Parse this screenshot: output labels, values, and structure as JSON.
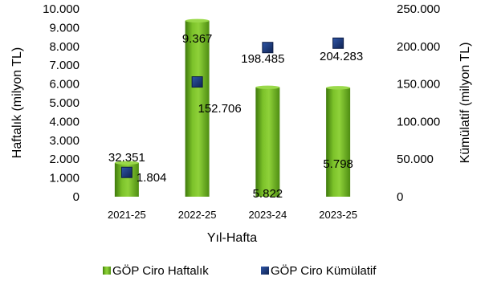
{
  "chart_data": {
    "type": "bar",
    "categories": [
      "2021-25",
      "2022-25",
      "2023-24",
      "2023-25"
    ],
    "series": [
      {
        "name": "GÖP Ciro Haftalık",
        "kind": "bar",
        "axis": "left",
        "values": [
          1804,
          9367,
          5822,
          5798
        ],
        "labels": [
          "1.804",
          "9.367",
          "5.822",
          "5.798"
        ],
        "color": "#6aaa1e"
      },
      {
        "name": "GÖP Ciro Kümülatif",
        "kind": "marker",
        "axis": "right",
        "values": [
          32351,
          152706,
          198485,
          204283
        ],
        "labels": [
          "32.351",
          "152.706",
          "198.485",
          "204.283"
        ],
        "color": "#1f3a78"
      }
    ],
    "xlabel": "Yıl-Hafta",
    "ylabel": "Haftalık (milyon TL)",
    "y2label": "Kümülatif (milyon TL)",
    "ylim": [
      0,
      10000
    ],
    "y2lim": [
      0,
      250000
    ],
    "yticks": [
      "0",
      "1.000",
      "2.000",
      "3.000",
      "4.000",
      "5.000",
      "6.000",
      "7.000",
      "8.000",
      "9.000",
      "10.000"
    ],
    "y2ticks": [
      "0",
      "50.000",
      "100.000",
      "150.000",
      "200.000",
      "250.000"
    ],
    "legend_position": "bottom",
    "grid": false
  }
}
